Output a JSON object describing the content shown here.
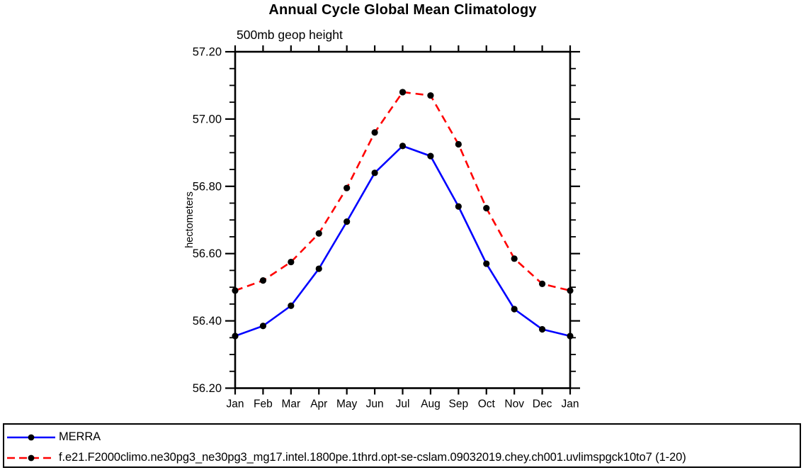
{
  "chart_data": {
    "type": "line",
    "title": "Annual Cycle Global Mean Climatology",
    "subtitle": "500mb geop height",
    "ylabel": "hectometers",
    "x_tick_labels": [
      "Jan",
      "Feb",
      "Mar",
      "Apr",
      "May",
      "Jun",
      "Jul",
      "Aug",
      "Sep",
      "Oct",
      "Nov",
      "Dec",
      "Jan"
    ],
    "y_tick_labels": [
      "56.20",
      "56.40",
      "56.60",
      "56.80",
      "57.00",
      "57.20"
    ],
    "ylim": [
      56.2,
      57.2
    ],
    "y_major_step": 0.2,
    "y_minor_step": 0.05,
    "grid": false,
    "legend_position": "bottom",
    "frame_color": "#000000",
    "marker": "filled-circle",
    "marker_color": "#000000",
    "series": [
      {
        "name": "MERRA",
        "color": "#0000ff",
        "style": "solid",
        "values": [
          56.355,
          56.385,
          56.445,
          56.555,
          56.695,
          56.84,
          56.92,
          56.89,
          56.74,
          56.57,
          56.435,
          56.375,
          56.355
        ]
      },
      {
        "name": "f.e21.F2000climo.ne30pg3_ne30pg3_mg17.intel.1800pe.1thrd.opt-se-cslam.09032019.chey.ch001.uvlimspgck10to7 (1-20)",
        "color": "#ff0000",
        "style": "dashed",
        "values": [
          56.49,
          56.52,
          56.575,
          56.66,
          56.795,
          56.96,
          57.08,
          57.07,
          56.925,
          56.735,
          56.585,
          56.51,
          56.49
        ]
      }
    ]
  }
}
